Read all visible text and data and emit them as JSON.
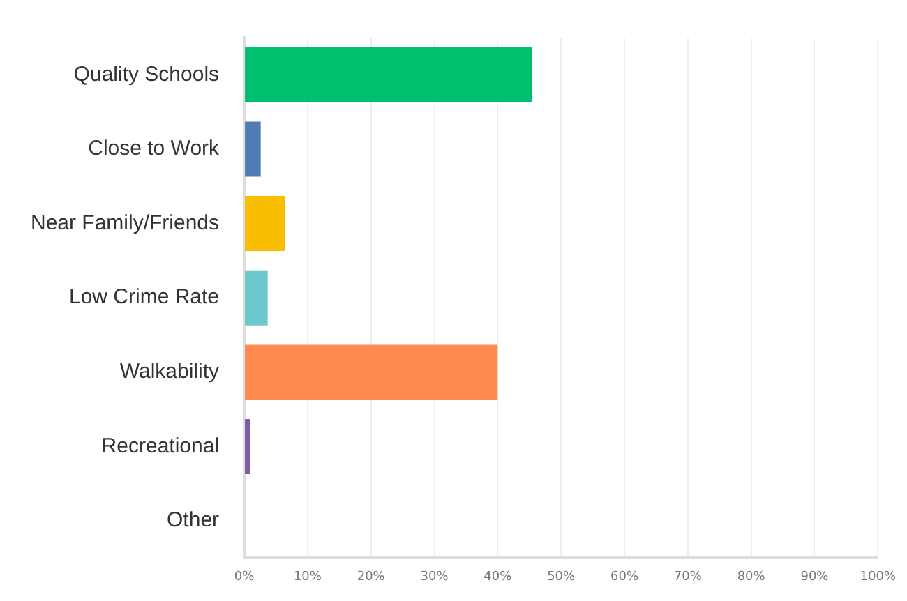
{
  "chart_data": {
    "type": "bar",
    "orientation": "horizontal",
    "categories": [
      "Quality Schools",
      "Close to Work",
      "Near Family/Friends",
      "Low Crime Rate",
      "Walkability",
      "Recreational",
      "Other"
    ],
    "values": [
      45.4,
      2.6,
      6.4,
      3.7,
      40,
      0.9,
      0
    ],
    "colors": [
      "#00bf6f",
      "#507cb6",
      "#f9be00",
      "#6bc8cd",
      "#ff8b4f",
      "#7d5ba6",
      "#999999"
    ],
    "xlim": [
      0,
      100
    ],
    "xticks": [
      {
        "value": 0,
        "label": "0%"
      },
      {
        "value": 10,
        "label": "10%"
      },
      {
        "value": 20,
        "label": "20%"
      },
      {
        "value": 30,
        "label": "30%"
      },
      {
        "value": 40,
        "label": "40%"
      },
      {
        "value": 50,
        "label": "50%"
      },
      {
        "value": 60,
        "label": "60%"
      },
      {
        "value": 70,
        "label": "70%"
      },
      {
        "value": 80,
        "label": "80%"
      },
      {
        "value": 90,
        "label": "90%"
      },
      {
        "value": 100,
        "label": "100%"
      }
    ],
    "grid": "x",
    "legend": false
  }
}
